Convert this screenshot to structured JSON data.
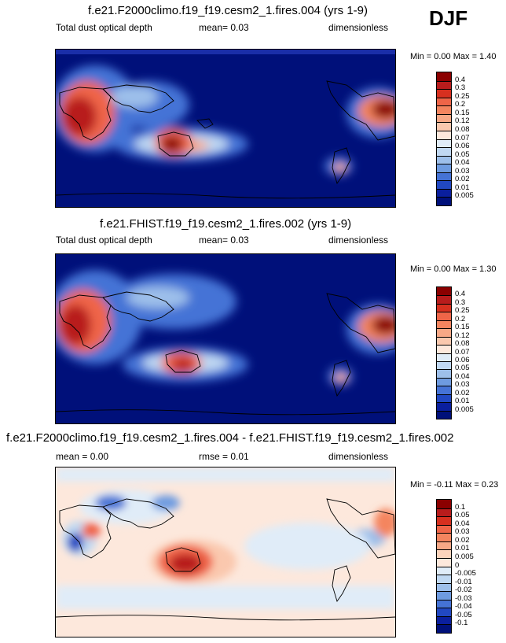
{
  "season": "DJF",
  "panels": [
    {
      "title": "f.e21.F2000climo.f19_f19.cesm2_1.fires.004 (yrs 1-9)",
      "left_label": "Total dust optical depth",
      "center_label": "mean=   0.03",
      "right_label": "dimensionless",
      "minmax": "Min =   0.00 Max =   1.40",
      "levels": [
        "0.4",
        "0.3",
        "0.25",
        "0.2",
        "0.15",
        "0.12",
        "0.08",
        "0.07",
        "0.06",
        "0.05",
        "0.04",
        "0.03",
        "0.02",
        "0.01",
        "0.005"
      ],
      "colors": [
        "#8b0000",
        "#b81c1c",
        "#d7301f",
        "#ef6548",
        "#f4855f",
        "#f7a886",
        "#fac8ae",
        "#fde8dc",
        "#e0ecf8",
        "#c0d8f2",
        "#9dbfea",
        "#6e9be0",
        "#4573d6",
        "#2148c2",
        "#0a1f9e",
        "#00107a"
      ]
    },
    {
      "title": "f.e21.FHIST.f19_f19.cesm2_1.fires.002 (yrs 1-9)",
      "left_label": "Total dust optical depth",
      "center_label": "mean=   0.03",
      "right_label": "dimensionless",
      "minmax": "Min =   0.00 Max =   1.30",
      "levels": [
        "0.4",
        "0.3",
        "0.25",
        "0.2",
        "0.15",
        "0.12",
        "0.08",
        "0.07",
        "0.06",
        "0.05",
        "0.04",
        "0.03",
        "0.02",
        "0.01",
        "0.005"
      ],
      "colors": [
        "#8b0000",
        "#b81c1c",
        "#d7301f",
        "#ef6548",
        "#f4855f",
        "#f7a886",
        "#fac8ae",
        "#fde8dc",
        "#e0ecf8",
        "#c0d8f2",
        "#9dbfea",
        "#6e9be0",
        "#4573d6",
        "#2148c2",
        "#0a1f9e",
        "#00107a"
      ]
    },
    {
      "title": "f.e21.F2000climo.f19_f19.cesm2_1.fires.004 - f.e21.FHIST.f19_f19.cesm2_1.fires.002",
      "left_label": "mean =   0.00",
      "center_label": "rmse =   0.01",
      "right_label": "dimensionless",
      "minmax": "Min = -0.11 Max =   0.23",
      "levels": [
        "0.1",
        "0.05",
        "0.04",
        "0.03",
        "0.02",
        "0.01",
        "0.005",
        "0",
        "-0.005",
        "-0.01",
        "-0.02",
        "-0.03",
        "-0.04",
        "-0.05",
        "-0.1"
      ],
      "colors": [
        "#8b0000",
        "#b81c1c",
        "#d7301f",
        "#ef6548",
        "#f4855f",
        "#f7a886",
        "#fcd4bc",
        "#fde8dc",
        "#e0ecf8",
        "#c0d8f2",
        "#9dbfea",
        "#6e9be0",
        "#4573d6",
        "#2148c2",
        "#0a1f9e",
        "#00107a"
      ]
    }
  ],
  "chart_data": [
    {
      "type": "heatmap",
      "title": "f.e21.F2000climo.f19_f19.cesm2_1.fires.004 (yrs 1-9)",
      "variable": "Total dust optical depth",
      "units": "dimensionless",
      "mean": 0.03,
      "min": 0.0,
      "max": 1.4,
      "contour_levels": [
        0.005,
        0.01,
        0.02,
        0.03,
        0.04,
        0.05,
        0.06,
        0.07,
        0.08,
        0.12,
        0.15,
        0.2,
        0.25,
        0.3,
        0.4
      ]
    },
    {
      "type": "heatmap",
      "title": "f.e21.FHIST.f19_f19.cesm2_1.fires.002 (yrs 1-9)",
      "variable": "Total dust optical depth",
      "units": "dimensionless",
      "mean": 0.03,
      "min": 0.0,
      "max": 1.3,
      "contour_levels": [
        0.005,
        0.01,
        0.02,
        0.03,
        0.04,
        0.05,
        0.06,
        0.07,
        0.08,
        0.12,
        0.15,
        0.2,
        0.25,
        0.3,
        0.4
      ]
    },
    {
      "type": "heatmap",
      "title": "f.e21.F2000climo.f19_f19.cesm2_1.fires.004 - f.e21.FHIST.f19_f19.cesm2_1.fires.002",
      "units": "dimensionless",
      "mean": 0.0,
      "rmse": 0.01,
      "min": -0.11,
      "max": 0.23,
      "contour_levels": [
        -0.1,
        -0.05,
        -0.04,
        -0.03,
        -0.02,
        -0.01,
        -0.005,
        0,
        0.005,
        0.01,
        0.02,
        0.03,
        0.04,
        0.05,
        0.1
      ]
    }
  ]
}
